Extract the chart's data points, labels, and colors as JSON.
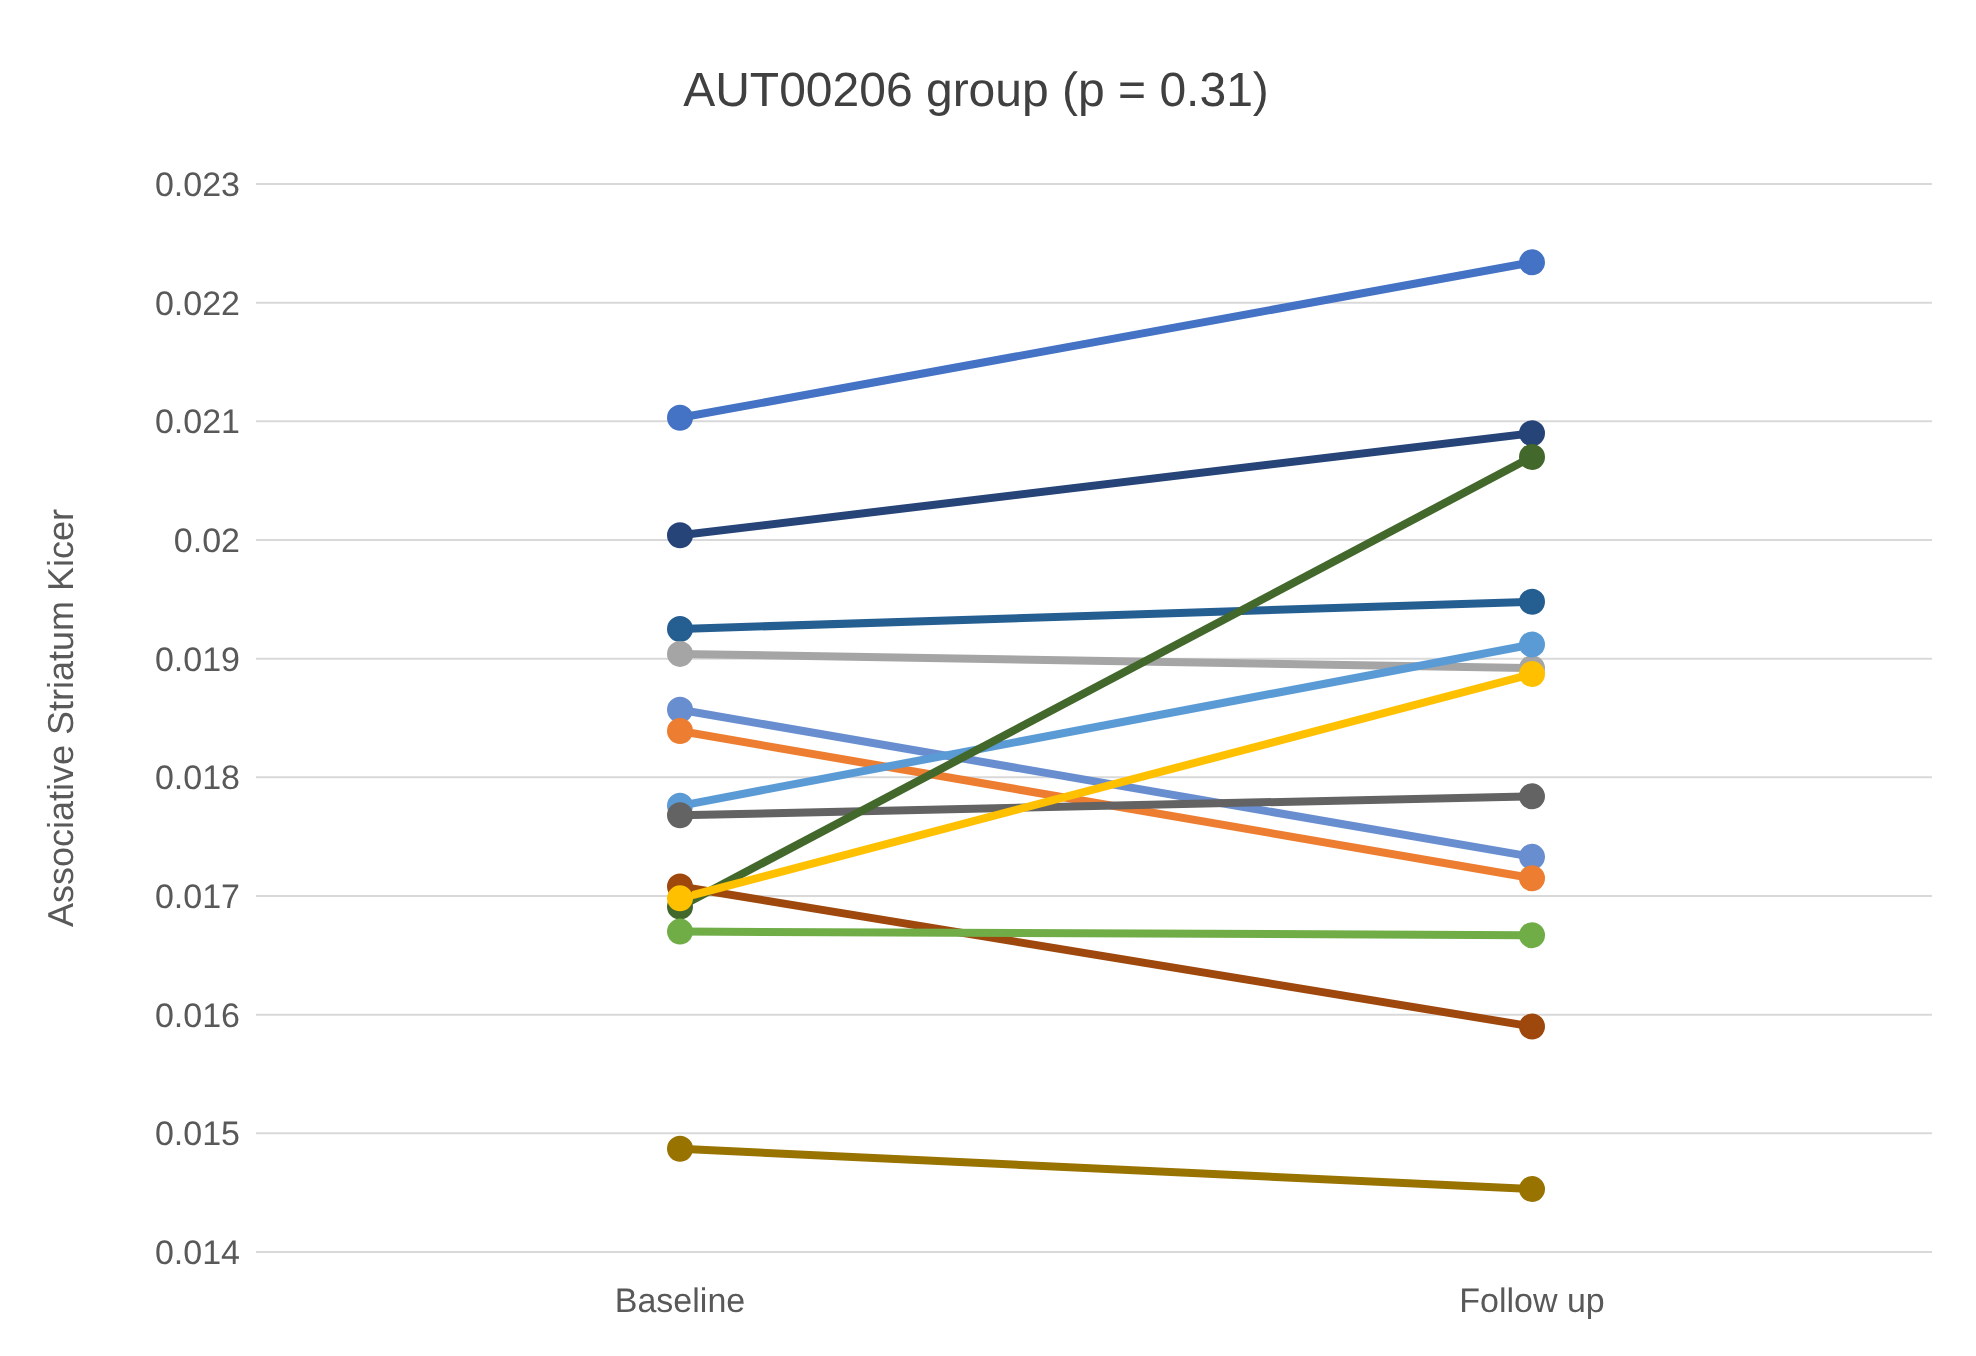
{
  "chart_data": {
    "type": "line",
    "title": "AUT00206 group (p = 0.31)",
    "ylabel": "Associative Striatum Kicer",
    "categories": [
      "Baseline",
      "Follow up"
    ],
    "series": [
      {
        "color": "#4472c4",
        "values": [
          0.02103,
          0.02234
        ]
      },
      {
        "color": "#264478",
        "values": [
          0.02004,
          0.0209
        ]
      },
      {
        "color": "#255e91",
        "values": [
          0.01925,
          0.01948
        ]
      },
      {
        "color": "#a5a5a5",
        "values": [
          0.01904,
          0.01892
        ]
      },
      {
        "color": "#698ed0",
        "values": [
          0.01857,
          0.01733
        ]
      },
      {
        "color": "#ed7d31",
        "values": [
          0.01839,
          0.01715
        ]
      },
      {
        "color": "#5b9bd5",
        "values": [
          0.01776,
          0.01912
        ]
      },
      {
        "color": "#636363",
        "values": [
          0.01768,
          0.01784
        ]
      },
      {
        "color": "#9e480e",
        "values": [
          0.01708,
          0.0159
        ]
      },
      {
        "color": "#43682b",
        "values": [
          0.01691,
          0.0207
        ]
      },
      {
        "color": "#ffc000",
        "values": [
          0.01698,
          0.01887
        ]
      },
      {
        "color": "#70ad47",
        "values": [
          0.0167,
          0.01667
        ]
      },
      {
        "color": "#997300",
        "values": [
          0.01487,
          0.01453
        ]
      }
    ],
    "ylim": [
      0.014,
      0.023
    ],
    "yticks": [
      0.014,
      0.015,
      0.016,
      0.017,
      0.018,
      0.019,
      0.02,
      0.021,
      0.022,
      0.023
    ],
    "grid": "y",
    "marker": "circle",
    "line_style": "solid",
    "legend": false
  }
}
